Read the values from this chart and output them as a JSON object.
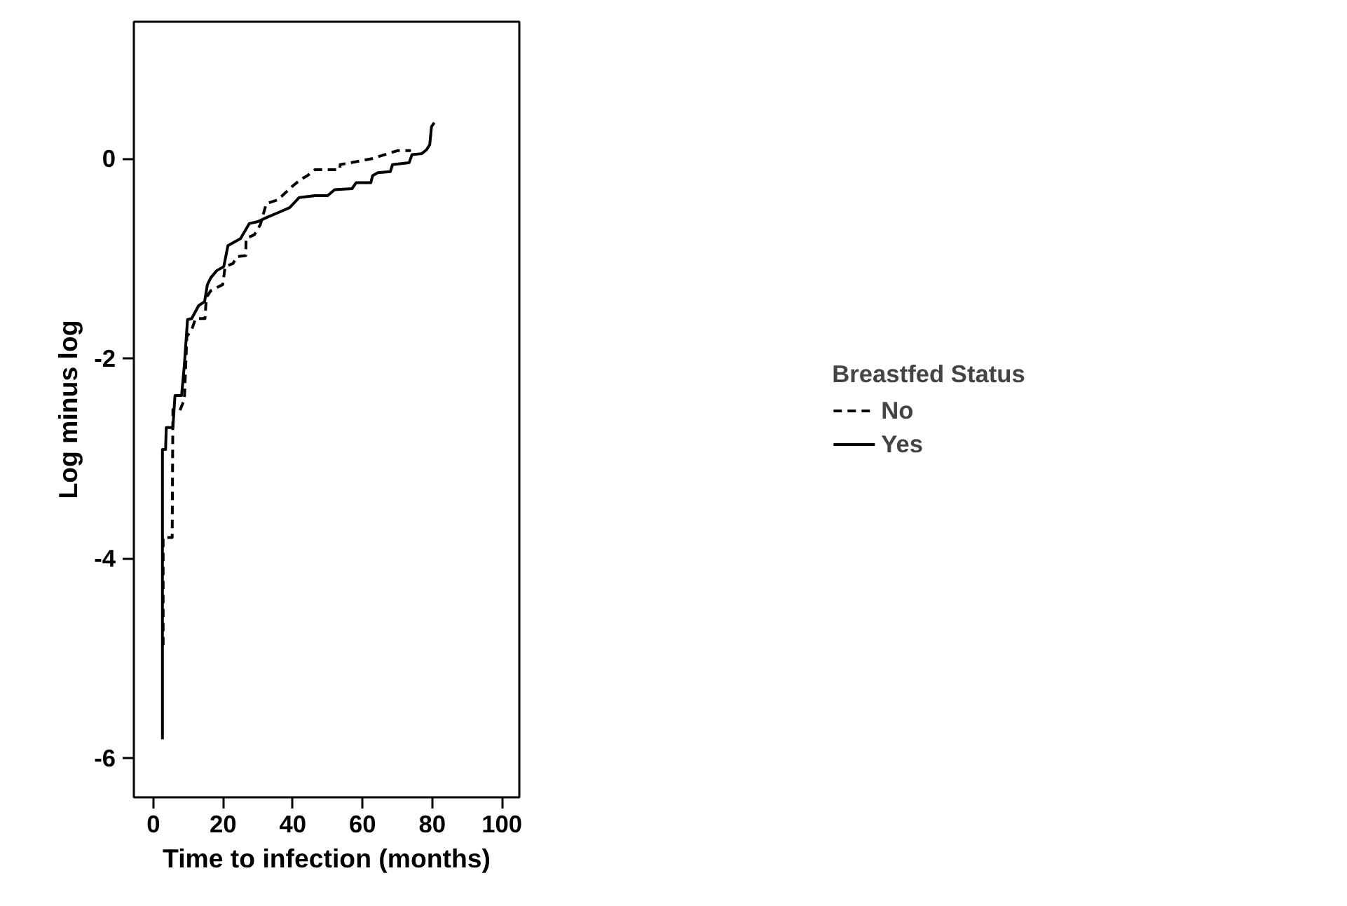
{
  "chart_data": {
    "type": "line",
    "xlabel": "Time to infection (months)",
    "ylabel": "Log minus log",
    "legend_title": "Breastfed Status",
    "legend": "right",
    "grid": false,
    "xlim": [
      -5.6,
      105
    ],
    "ylim": [
      -6.39,
      1.37
    ],
    "xticks": [
      0,
      20,
      40,
      60,
      80,
      100
    ],
    "yticks": [
      0,
      -2,
      -4,
      -6
    ],
    "series": [
      {
        "name": "No",
        "color": "#000000",
        "line_style": "dashed",
        "x": [
          2.8,
          2.8,
          3.1,
          5.4,
          5.6,
          6.4,
          7.6,
          8.9,
          9.6,
          11,
          12.1,
          14.8,
          15.2,
          16.5,
          19.9,
          20.6,
          22.8,
          24.1,
          26.5,
          26.6,
          29,
          30.7,
          32.4,
          35.8,
          37.9,
          40.1,
          42.2,
          44.2,
          46.4,
          53.5,
          53.6,
          62.7,
          70,
          73.9
        ],
        "values": [
          -4.87,
          -3.79,
          -3.79,
          -3.79,
          -2.51,
          -2.52,
          -2.52,
          -2.41,
          -1.78,
          -1.71,
          -1.6,
          -1.6,
          -1.39,
          -1.32,
          -1.26,
          -1.08,
          -1.05,
          -0.98,
          -0.97,
          -0.8,
          -0.76,
          -0.66,
          -0.45,
          -0.41,
          -0.34,
          -0.27,
          -0.21,
          -0.17,
          -0.11,
          -0.11,
          -0.06,
          0.0,
          0.08,
          0.08
        ]
      },
      {
        "name": "Yes",
        "color": "#000000",
        "line_style": "solid",
        "x": [
          2.6,
          2.6,
          3.5,
          3.7,
          5.6,
          6.2,
          8.1,
          8.9,
          9.8,
          11,
          13,
          14.7,
          15.5,
          16.5,
          18.2,
          20.2,
          21.4,
          25,
          27.5,
          30,
          32.4,
          35.8,
          39.1,
          41.8,
          46.4,
          50,
          52,
          57,
          58.2,
          62.4,
          62.9,
          64.4,
          68,
          68.6,
          73.4,
          74.2,
          77,
          78.4,
          79.3,
          79.8,
          80.6
        ],
        "values": [
          -5.81,
          -2.91,
          -2.91,
          -2.69,
          -2.69,
          -2.37,
          -2.37,
          -2.06,
          -1.61,
          -1.6,
          -1.47,
          -1.43,
          -1.26,
          -1.19,
          -1.12,
          -1.08,
          -0.87,
          -0.8,
          -0.65,
          -0.63,
          -0.59,
          -0.54,
          -0.49,
          -0.39,
          -0.37,
          -0.37,
          -0.31,
          -0.3,
          -0.24,
          -0.24,
          -0.17,
          -0.14,
          -0.13,
          -0.06,
          -0.04,
          0.04,
          0.05,
          0.09,
          0.14,
          0.32,
          0.36
        ]
      }
    ]
  }
}
